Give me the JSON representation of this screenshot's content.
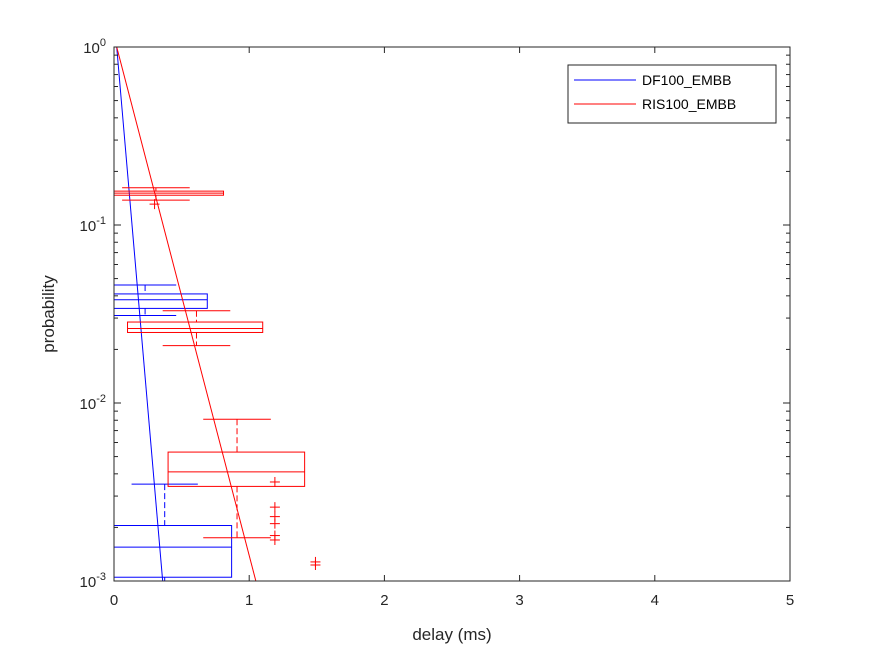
{
  "chart_data": {
    "type": "line",
    "xlabel": "delay (ms)",
    "ylabel": "probability",
    "xlim": [
      0,
      5
    ],
    "ylim": [
      0.001,
      1
    ],
    "yscale": "log",
    "x_ticks": [
      0,
      1,
      2,
      3,
      4,
      5
    ],
    "x_tick_labels": [
      "0",
      "1",
      "2",
      "3",
      "4",
      "5"
    ],
    "y_ticks": [
      0.001,
      0.01,
      0.1,
      1
    ],
    "y_tick_labels": [
      {
        "base": "10",
        "exp": "-3"
      },
      {
        "base": "10",
        "exp": "-2"
      },
      {
        "base": "10",
        "exp": "-1"
      },
      {
        "base": "10",
        "exp": "0"
      }
    ],
    "grid": false,
    "box": true,
    "legend_position": "top-right",
    "series": [
      {
        "name": "DF100_EMBB",
        "color": "#0000ff",
        "fit_line": {
          "x": [
            0.02,
            0.36
          ],
          "y": [
            1.0,
            0.001
          ]
        },
        "boxes": [
          {
            "y_lower": 0.034,
            "y_median": 0.038,
            "y_upper": 0.041,
            "x_q1": 0.0,
            "x_median": 0.18,
            "x_q3": 0.69,
            "whisker_low": 0.0,
            "whisker_high": 0.0,
            "cap_y_low": 0.031,
            "cap_y_high": 0.046,
            "cap_x": [
              0.0,
              0.46
            ],
            "outliers": []
          },
          {
            "y_lower": 0.00105,
            "y_median": 0.00155,
            "y_upper": 0.00205,
            "x_q1": 0.0,
            "x_median": 0.0,
            "x_q3": 0.87,
            "whisker_low": 0.0,
            "whisker_high": 0.37,
            "cap_y_low": 0.001,
            "cap_y_high": 0.0035,
            "cap_x": [
              0.13,
              0.62
            ],
            "outliers": []
          }
        ]
      },
      {
        "name": "RIS100_EMBB",
        "color": "#ff0000",
        "fit_line": {
          "x": [
            0.02,
            1.06
          ],
          "y": [
            1.0,
            0.00093
          ]
        },
        "top_segment": {
          "x": [
            0.0,
            0.52
          ],
          "y": [
            1.0,
            1.0
          ]
        },
        "boxes": [
          {
            "y_lower": 0.147,
            "y_median": 0.151,
            "y_upper": 0.155,
            "x_q1": 0.0,
            "x_median": 0.3,
            "x_q3": 0.81,
            "whisker_low": 0.0,
            "whisker_high": 0.0,
            "cap_y_low": 0.138,
            "cap_y_high": 0.162,
            "cap_x": [
              0.06,
              0.56
            ],
            "outliers": [
              {
                "x": 0.3,
                "y": 0.131
              }
            ]
          },
          {
            "y_lower": 0.0249,
            "y_median": 0.0262,
            "y_upper": 0.0285,
            "x_q1": 0.1,
            "x_median": 0.6,
            "x_q3": 1.1,
            "whisker_low": 0.0,
            "whisker_high": 0.0,
            "cap_y_low": 0.021,
            "cap_y_high": 0.033,
            "cap_x": [
              0.36,
              0.86
            ],
            "outliers": []
          },
          {
            "y_lower": 0.0034,
            "y_median": 0.0041,
            "y_upper": 0.0053,
            "x_q1": 0.4,
            "x_median": 0.4,
            "x_q3": 1.41,
            "whisker_low": 0.0,
            "whisker_high": 0.0,
            "cap_y_low": 0.00175,
            "cap_y_high": 0.0081,
            "cap_x": [
              0.66,
              1.16
            ],
            "outliers": [
              {
                "x": 1.19,
                "y": 0.0036
              },
              {
                "x": 1.19,
                "y": 0.0026
              },
              {
                "x": 1.19,
                "y": 0.0023
              },
              {
                "x": 1.19,
                "y": 0.0021
              },
              {
                "x": 1.19,
                "y": 0.0018
              },
              {
                "x": 1.19,
                "y": 0.0017
              },
              {
                "x": 1.49,
                "y": 0.00128
              },
              {
                "x": 1.49,
                "y": 0.00123
              }
            ]
          }
        ]
      }
    ]
  }
}
